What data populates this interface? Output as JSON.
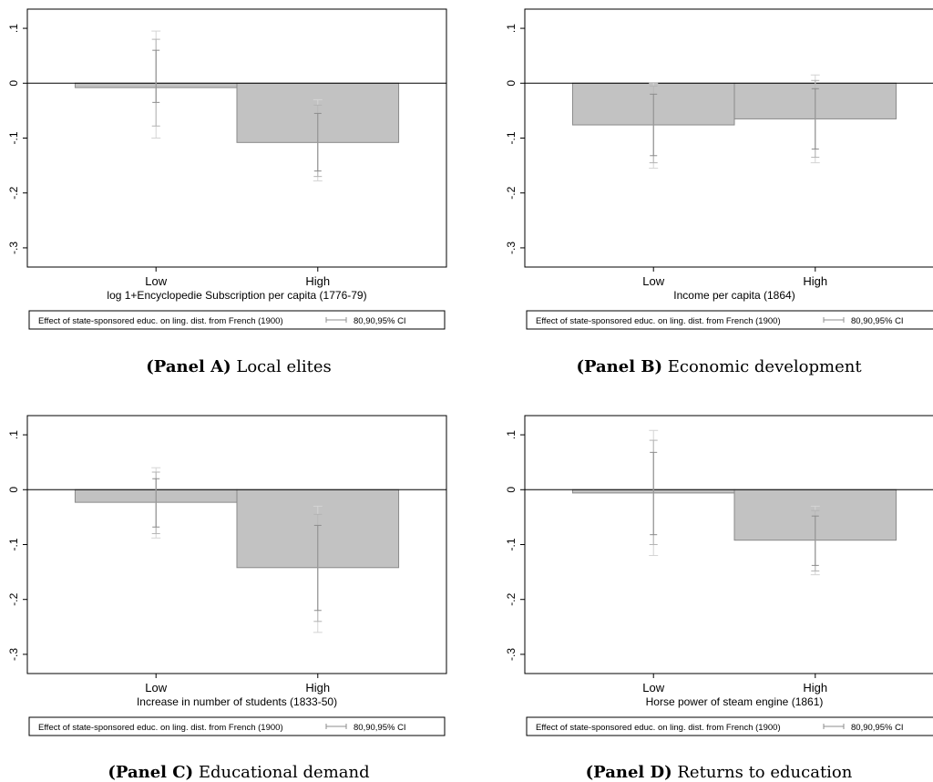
{
  "chart_data": [
    {
      "type": "bar",
      "panel_tag": "(Panel A)",
      "caption": "Local elites",
      "xlabel": "log 1+Encyclopedie Subscription per capita (1776-79)",
      "categories": [
        "Low",
        "High"
      ],
      "values": [
        -0.008,
        -0.108
      ],
      "ci": [
        {
          "ci80": [
            -0.035,
            0.06
          ],
          "ci90": [
            -0.078,
            0.08
          ],
          "ci95": [
            -0.1,
            0.095
          ]
        },
        {
          "ci80": [
            -0.055,
            -0.16
          ],
          "ci90": [
            -0.04,
            -0.17
          ],
          "ci95": [
            -0.03,
            -0.178
          ]
        }
      ],
      "yticks": [
        "-.3",
        "-.2",
        "-.1",
        "0",
        ".1"
      ],
      "ylim": [
        -0.335,
        0.135
      ],
      "legend": {
        "series": "Effect of state-sponsored educ. on ling. dist. from French (1900)",
        "ci": "80,90,95% CI",
        "placement": "bottom"
      }
    },
    {
      "type": "bar",
      "panel_tag": "(Panel B)",
      "caption": "Economic development",
      "xlabel": "Income per capita (1864)",
      "categories": [
        "Low",
        "High"
      ],
      "values": [
        -0.076,
        -0.065
      ],
      "ci": [
        {
          "ci80": [
            -0.02,
            -0.132
          ],
          "ci90": [
            -0.005,
            -0.145
          ],
          "ci95": [
            0.0,
            -0.155
          ]
        },
        {
          "ci80": [
            -0.01,
            -0.12
          ],
          "ci90": [
            0.005,
            -0.135
          ],
          "ci95": [
            0.015,
            -0.145
          ]
        }
      ],
      "yticks": [
        "-.3",
        "-.2",
        "-.1",
        "0",
        ".1"
      ],
      "ylim": [
        -0.335,
        0.135
      ],
      "legend": {
        "series": "Effect of state-sponsored educ. on ling. dist. from French (1900)",
        "ci": "80,90,95% CI",
        "placement": "bottom"
      }
    },
    {
      "type": "bar",
      "panel_tag": "(Panel C)",
      "caption": "Educational demand",
      "xlabel": "Increase in number of students (1833-50)",
      "categories": [
        "Low",
        "High"
      ],
      "values": [
        -0.023,
        -0.142
      ],
      "ci": [
        {
          "ci80": [
            0.02,
            -0.068
          ],
          "ci90": [
            0.032,
            -0.08
          ],
          "ci95": [
            0.04,
            -0.088
          ]
        },
        {
          "ci80": [
            -0.065,
            -0.22
          ],
          "ci90": [
            -0.045,
            -0.24
          ],
          "ci95": [
            -0.03,
            -0.26
          ]
        }
      ],
      "yticks": [
        "-.3",
        "-.2",
        "-.1",
        "0",
        ".1"
      ],
      "ylim": [
        -0.335,
        0.135
      ],
      "legend": {
        "series": "Effect of state-sponsored educ. on ling. dist. from French (1900)",
        "ci": "80,90,95% CI",
        "placement": "bottom"
      }
    },
    {
      "type": "bar",
      "panel_tag": "(Panel D)",
      "caption": "Returns to education",
      "xlabel": "Horse power of steam engine (1861)",
      "categories": [
        "Low",
        "High"
      ],
      "values": [
        -0.006,
        -0.092
      ],
      "ci": [
        {
          "ci80": [
            0.068,
            -0.082
          ],
          "ci90": [
            0.09,
            -0.1
          ],
          "ci95": [
            0.108,
            -0.12
          ]
        },
        {
          "ci80": [
            -0.048,
            -0.138
          ],
          "ci90": [
            -0.038,
            -0.148
          ],
          "ci95": [
            -0.03,
            -0.155
          ]
        }
      ],
      "yticks": [
        "-.3",
        "-.2",
        "-.1",
        "0",
        ".1"
      ],
      "ylim": [
        -0.335,
        0.135
      ],
      "legend": {
        "series": "Effect of state-sponsored educ. on ling. dist. from French (1900)",
        "ci": "80,90,95% CI",
        "placement": "bottom"
      }
    }
  ],
  "colors": {
    "bar_fill": "#c2c2c2",
    "bar_stroke": "#8a8a8a",
    "ci80": "#8c8c8c",
    "ci90": "#b4b4b4",
    "ci95": "#d4d4d4",
    "frame": "#000000"
  }
}
